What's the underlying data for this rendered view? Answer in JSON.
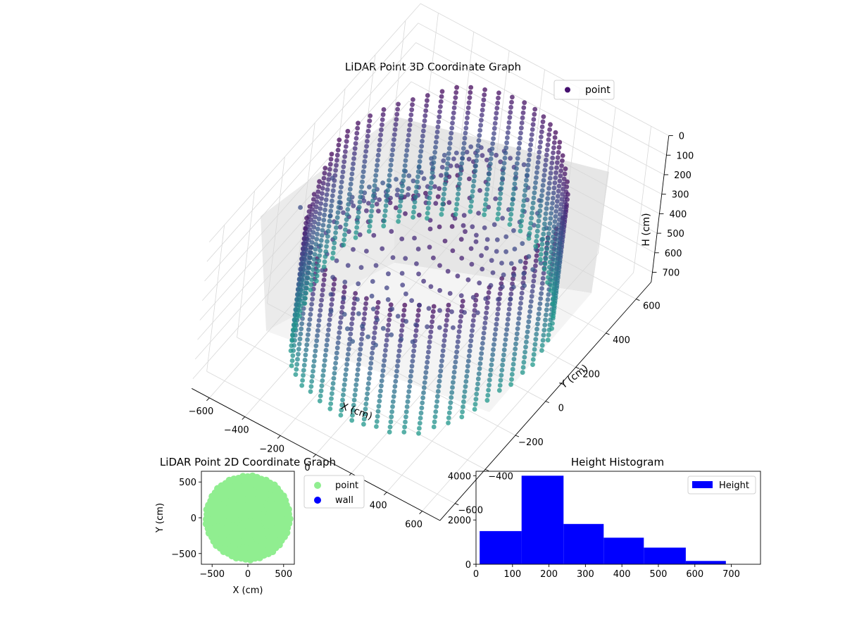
{
  "chart_data": [
    {
      "type": "scatter",
      "projection": "3d",
      "title": "LiDAR Point 3D Coordinate Graph",
      "xlabel": "X (cm)",
      "ylabel": "Y (cm)",
      "zlabel": "H (cm)",
      "xlim": [
        -700,
        700
      ],
      "ylim": [
        -700,
        700
      ],
      "zlim": [
        750,
        0
      ],
      "zaxis_inverted": true,
      "x_ticks": [
        "−600",
        "−400",
        "−200",
        "0",
        "200",
        "400",
        "600"
      ],
      "y_ticks": [
        "−600",
        "−400",
        "−200",
        "0",
        "200",
        "400",
        "600"
      ],
      "z_ticks": [
        "0",
        "100",
        "200",
        "300",
        "400",
        "500",
        "600",
        "700"
      ],
      "colormap": "viridis (by height)",
      "legend": {
        "entries": [
          "point"
        ],
        "placement": "upper-right",
        "color": "#440f6e"
      },
      "grid": true,
      "description_points": {
        "wall_radius_cm": 560,
        "height_range_cm": [
          0,
          700
        ],
        "scans": 56,
        "outliers": [
          {
            "x": -640,
            "y": -120,
            "h": 300
          },
          {
            "x": -600,
            "y": 40,
            "h": 270
          }
        ]
      }
    },
    {
      "type": "scatter",
      "title": "LiDAR Point 2D Coordinate Graph",
      "xlabel": "X (cm)",
      "ylabel": "Y (cm)",
      "xlim": [
        -650,
        650
      ],
      "ylim": [
        -650,
        650
      ],
      "x_ticks": [
        "−500",
        "0",
        "500"
      ],
      "y_ticks": [
        "−500",
        "0",
        "500"
      ],
      "series": [
        {
          "name": "point",
          "color": "#90ee90",
          "shape": "filled disk radius ~590 cm"
        },
        {
          "name": "wall",
          "color": "#0000ff",
          "count": 0
        }
      ],
      "legend": {
        "placement": "outside-right"
      },
      "grid": false
    },
    {
      "type": "bar",
      "subtype": "histogram",
      "title": "Height Histogram",
      "xlim": [
        0,
        780
      ],
      "ylim": [
        0,
        4200
      ],
      "x_ticks": [
        "0",
        "100",
        "200",
        "300",
        "400",
        "500",
        "600",
        "700"
      ],
      "y_ticks": [
        "0",
        "2000",
        "4000"
      ],
      "bins": [
        {
          "from": 10,
          "to": 125,
          "count": 1500
        },
        {
          "from": 125,
          "to": 240,
          "count": 4000
        },
        {
          "from": 240,
          "to": 350,
          "count": 1820
        },
        {
          "from": 350,
          "to": 460,
          "count": 1200
        },
        {
          "from": 460,
          "to": 575,
          "count": 750
        },
        {
          "from": 575,
          "to": 685,
          "count": 150
        }
      ],
      "series": [
        {
          "name": "Height",
          "color": "#0000ff"
        }
      ],
      "legend": {
        "placement": "upper-right"
      },
      "grid": false
    }
  ]
}
